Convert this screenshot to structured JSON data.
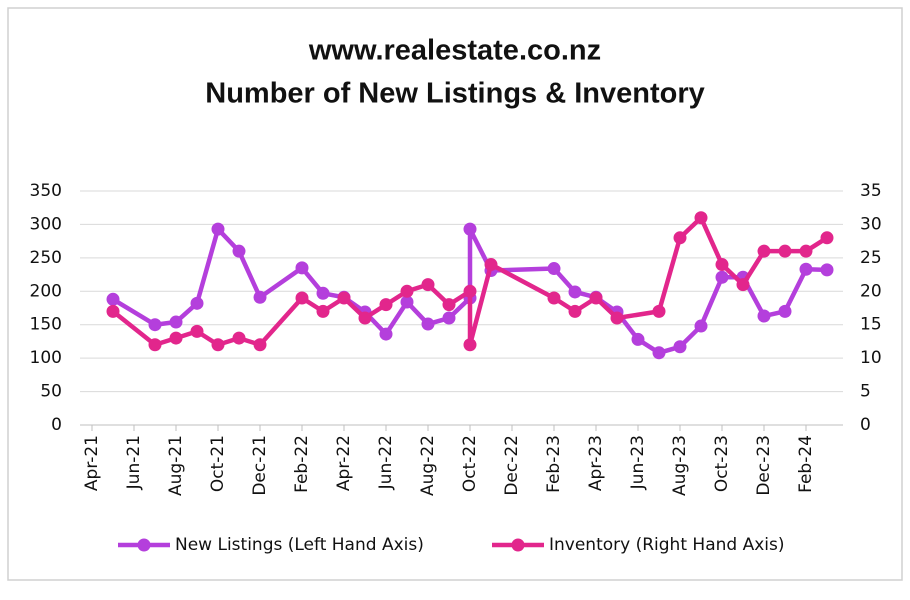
{
  "chart_data": {
    "type": "line",
    "title": [
      "www.realestate.co.nz",
      "Number of New Listings & Inventory"
    ],
    "xlim": [
      "Apr-21",
      "Apr-24"
    ],
    "xticks": [
      "Apr-21",
      "Jun-21",
      "Aug-21",
      "Oct-21",
      "Dec-21",
      "Feb-22",
      "Apr-22",
      "Jun-22",
      "Aug-22",
      "Oct-22",
      "Dec-22",
      "Feb-23",
      "Apr-23",
      "Jun-23",
      "Aug-23",
      "Oct-23",
      "Dec-23",
      "Feb-24"
    ],
    "ylim": [
      0,
      350
    ],
    "yticks": [
      0,
      50,
      100,
      150,
      200,
      250,
      300,
      350
    ],
    "y2lim": [
      0,
      35
    ],
    "y2ticks": [
      0,
      5,
      10,
      15,
      20,
      25,
      30,
      35
    ],
    "grid": true,
    "legend": "bottom",
    "series": [
      {
        "name": "New Listings (Left Hand Axis)",
        "color": "#b43fdc",
        "x": [
          "May-21",
          "Jul-21",
          "Aug-21",
          "Sep-21",
          "Oct-21",
          "Nov-21",
          "Dec-21",
          "Feb-22",
          "Mar-22",
          "Apr-22",
          "May-22",
          "Jun-22",
          "Jul-22",
          "Aug-22",
          "Sep-22",
          "Oct-22",
          "Oct-22",
          "Nov-22",
          "Feb-23",
          "Mar-23",
          "Apr-23",
          "May-23",
          "Jun-23",
          "Jul-23",
          "Aug-23",
          "Sep-23",
          "Oct-23",
          "Nov-23",
          "Dec-23",
          "Jan-24",
          "Feb-24",
          "Mar-24"
        ],
        "values": [
          188,
          150,
          154,
          182,
          293,
          260,
          191,
          235,
          197,
          191,
          169,
          136,
          184,
          151,
          160,
          190,
          293,
          231,
          234,
          199,
          191,
          169,
          128,
          108,
          117,
          148,
          221,
          221,
          163,
          170,
          233,
          232
        ]
      },
      {
        "name": "Inventory (Right Hand Axis)",
        "color": "#e2268c",
        "axis": "y2",
        "x": [
          "May-21",
          "Jul-21",
          "Aug-21",
          "Sep-21",
          "Oct-21",
          "Nov-21",
          "Dec-21",
          "Feb-22",
          "Mar-22",
          "Apr-22",
          "May-22",
          "Jun-22",
          "Jul-22",
          "Aug-22",
          "Sep-22",
          "Oct-22",
          "Oct-22",
          "Nov-22",
          "Feb-23",
          "Mar-23",
          "Apr-23",
          "May-23",
          "Jul-23",
          "Aug-23",
          "Sep-23",
          "Oct-23",
          "Nov-23",
          "Dec-23",
          "Jan-24",
          "Feb-24",
          "Mar-24"
        ],
        "values": [
          17,
          12,
          13,
          14,
          12,
          13,
          12,
          19,
          17,
          19,
          16,
          18,
          20,
          21,
          18,
          20,
          12,
          24,
          19,
          17,
          19,
          16,
          17,
          28,
          31,
          24,
          21,
          26,
          26,
          26,
          28
        ]
      }
    ]
  }
}
